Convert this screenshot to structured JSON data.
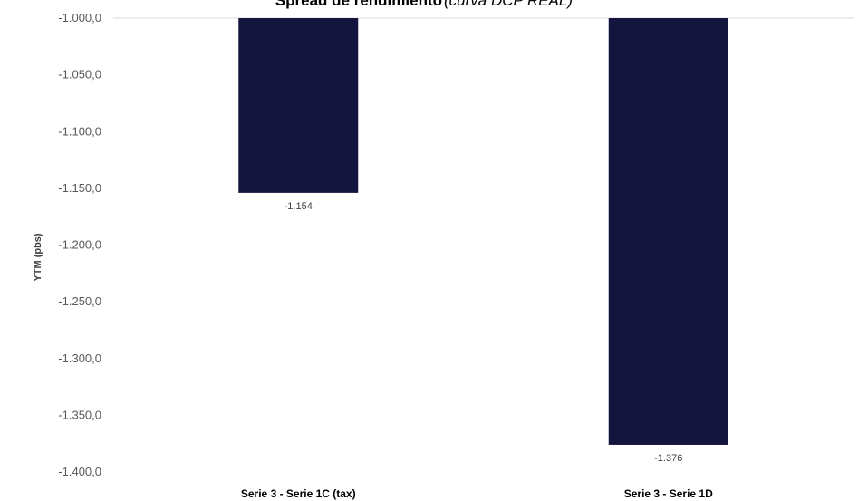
{
  "chart_data": {
    "type": "bar",
    "title": "Spread de rendimiento",
    "subtitle": "(curva DCP REAL)",
    "ylabel": "YTM (pbs)",
    "xlabel": "",
    "categories": [
      "Serie 3 - Serie 1C (tax)",
      "Serie 3 - Serie 1D"
    ],
    "values": [
      -1154,
      -1376
    ],
    "data_labels": [
      "-1.154",
      "-1.376"
    ],
    "ylim": [
      -1400,
      -1000
    ],
    "yticks": [
      -1000,
      -1050,
      -1100,
      -1150,
      -1200,
      -1250,
      -1300,
      -1350,
      -1400
    ],
    "ytick_labels": [
      "-1.000,0",
      "-1.050,0",
      "-1.100,0",
      "-1.150,0",
      "-1.200,0",
      "-1.250,0",
      "-1.300,0",
      "-1.350,0",
      "-1.400,0"
    ],
    "grid": false,
    "legend": "none",
    "bar_color": "#13153f"
  }
}
